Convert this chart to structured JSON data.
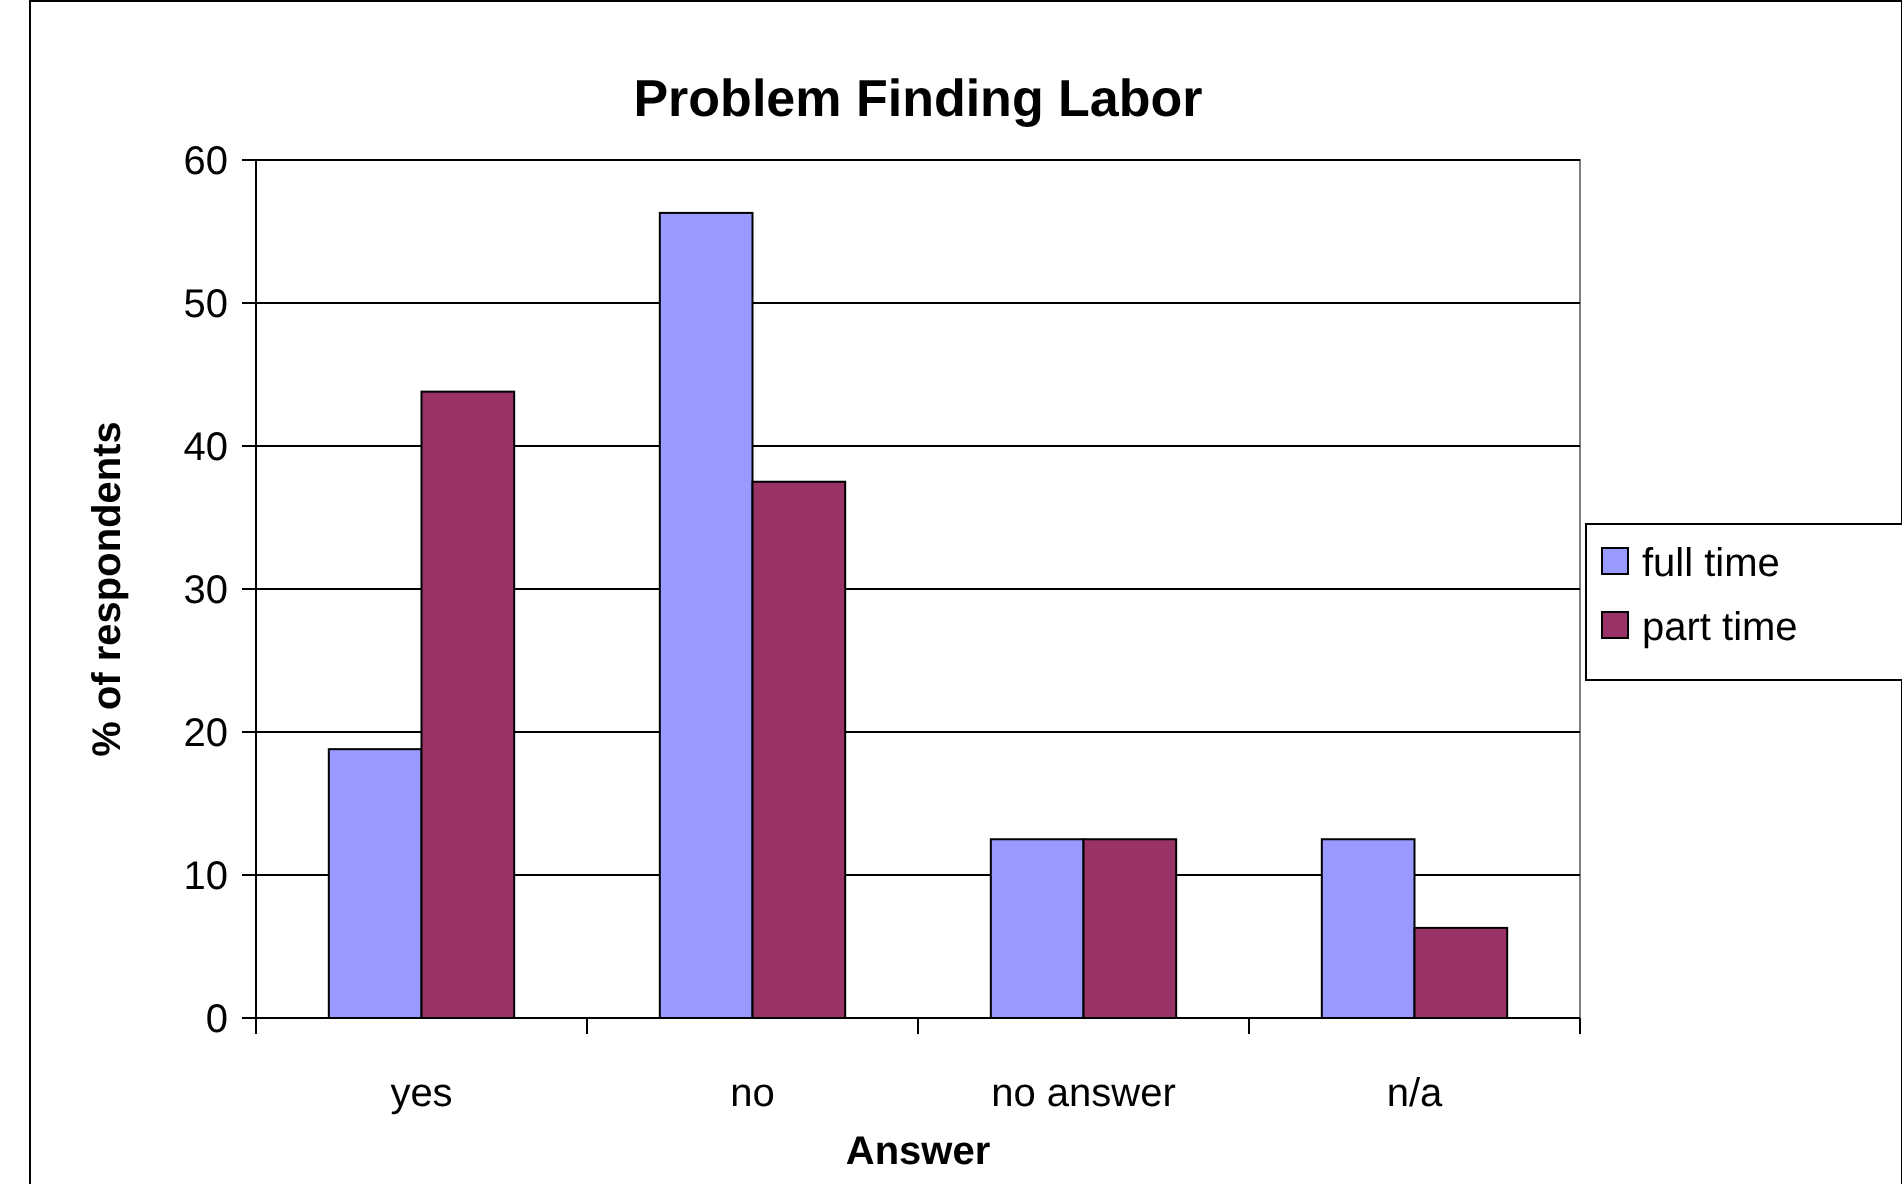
{
  "chart_data": {
    "type": "bar",
    "title": "Problem Finding Labor",
    "xlabel": "Answer",
    "ylabel": "% of respondents",
    "categories": [
      "yes",
      "no",
      "no answer",
      "n/a"
    ],
    "series": [
      {
        "name": "full time",
        "color": "#9999ff",
        "values": [
          18.8,
          56.3,
          12.5,
          12.5
        ]
      },
      {
        "name": "part time",
        "color": "#993366",
        "values": [
          43.8,
          37.5,
          12.5,
          6.3
        ]
      }
    ],
    "ylim": [
      0,
      60
    ],
    "yticks": [
      0,
      10,
      20,
      30,
      40,
      50,
      60
    ],
    "grid": "y",
    "legend": "right"
  }
}
